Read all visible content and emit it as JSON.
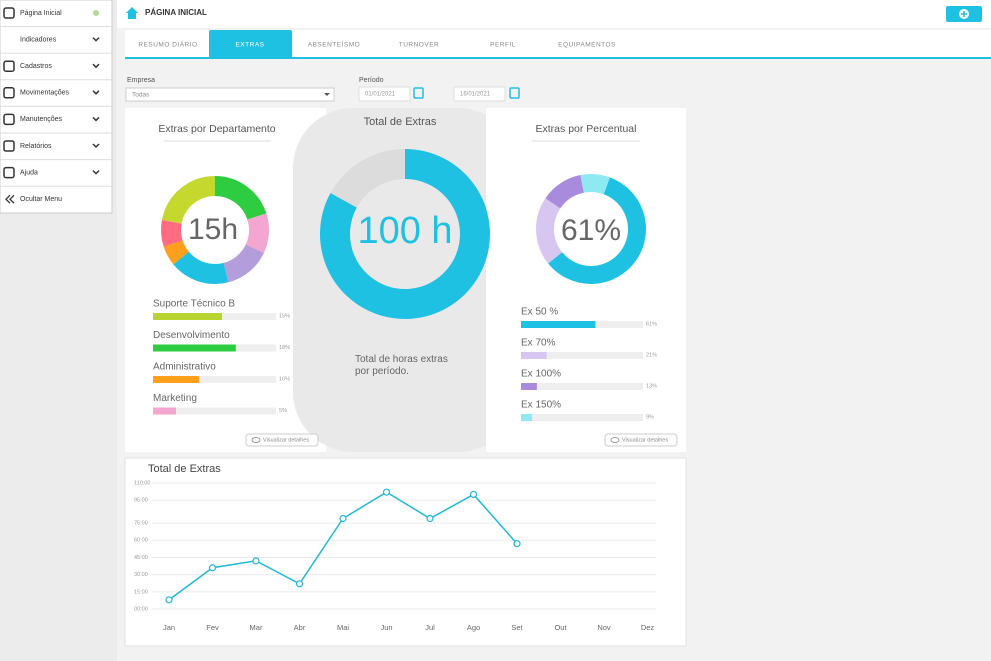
{
  "sidebar": {
    "items": [
      "Página Inicial",
      "Indicadores",
      "Cadastros",
      "Movimentações",
      "Manutenções",
      "Relatórios",
      "Ajuda",
      "Ocultar Menu"
    ]
  },
  "header": {
    "title": "PÁGINA INICIAL"
  },
  "tabs": {
    "items": [
      "RESUMO DIÁRIO",
      "EXTRAS",
      "ABSENTEÍSMO",
      "TURNOVER",
      "PERFIL",
      "EQUIPAMENTOS"
    ],
    "active": 1
  },
  "filters": {
    "empresa_label": "Empresa",
    "empresa_value": "Todas",
    "periodo_label": "Período",
    "date_start": "01/01/2021",
    "date_end": "16/01/2021"
  },
  "chart_data": [
    {
      "type": "donut",
      "title": "Extras por Departamento",
      "center_label": "15h",
      "segments": [
        20,
        12,
        14,
        18,
        6,
        8,
        22
      ],
      "segment_colors": [
        "#2ecc40",
        "#f3a6cf",
        "#b39ddb",
        "#1fc1e3",
        "#ff9f1c",
        "#ff6b81",
        "#c4d82e"
      ],
      "categories": [
        "Suporte Técnico B",
        "Desenvolvimento",
        "Administrativo",
        "Marketing"
      ],
      "values": [
        15,
        18,
        10,
        5
      ],
      "value_labels": [
        "15%",
        "18%",
        "10%",
        "5%"
      ],
      "colors": [
        "#b8d432",
        "#2ecc40",
        "#ff9f1c",
        "#f3a6cf"
      ],
      "button": "Visualizar detalhes"
    },
    {
      "type": "donut",
      "title": "Total de Extras",
      "center_label": "100 h",
      "segments": [
        83,
        17
      ],
      "segment_colors": [
        "#1fc1e3",
        "#dcdcdc"
      ],
      "caption": "Total de horas extras por período."
    },
    {
      "type": "donut",
      "title": "Extras por Percentual",
      "center_label": "61%",
      "categories": [
        "Ex 50 %",
        "Ex 70%",
        "Ex 100%",
        "Ex 150%"
      ],
      "values": [
        61,
        21,
        13,
        9
      ],
      "value_labels": [
        "61%",
        "21%",
        "13%",
        "9%"
      ],
      "colors": [
        "#1fc1e3",
        "#d7c6f0",
        "#a98bde",
        "#8ee9f3"
      ],
      "button": "Visualizar detalhes"
    },
    {
      "type": "line",
      "title": "Total de Extras",
      "categories": [
        "Jan",
        "Fev",
        "Mar",
        "Abr",
        "Mai",
        "Jun",
        "Jul",
        "Ago",
        "Set",
        "Out",
        "Nov",
        "Dez"
      ],
      "values": [
        8,
        36,
        42,
        22,
        79,
        102,
        79,
        100,
        57,
        null,
        null,
        null
      ],
      "color": "#1fb8d6",
      "ylim": [
        0,
        110
      ],
      "yticks": [
        {
          "value": 0,
          "label": "00:00"
        },
        {
          "value": 15,
          "label": "15:00"
        },
        {
          "value": 30,
          "label": "30:00"
        },
        {
          "value": 45,
          "label": "45:00"
        },
        {
          "value": 60,
          "label": "60:00"
        },
        {
          "value": 75,
          "label": "75:00"
        },
        {
          "value": 95,
          "label": "95:00"
        },
        {
          "value": 110,
          "label": "110:00"
        }
      ],
      "grid": true
    }
  ]
}
